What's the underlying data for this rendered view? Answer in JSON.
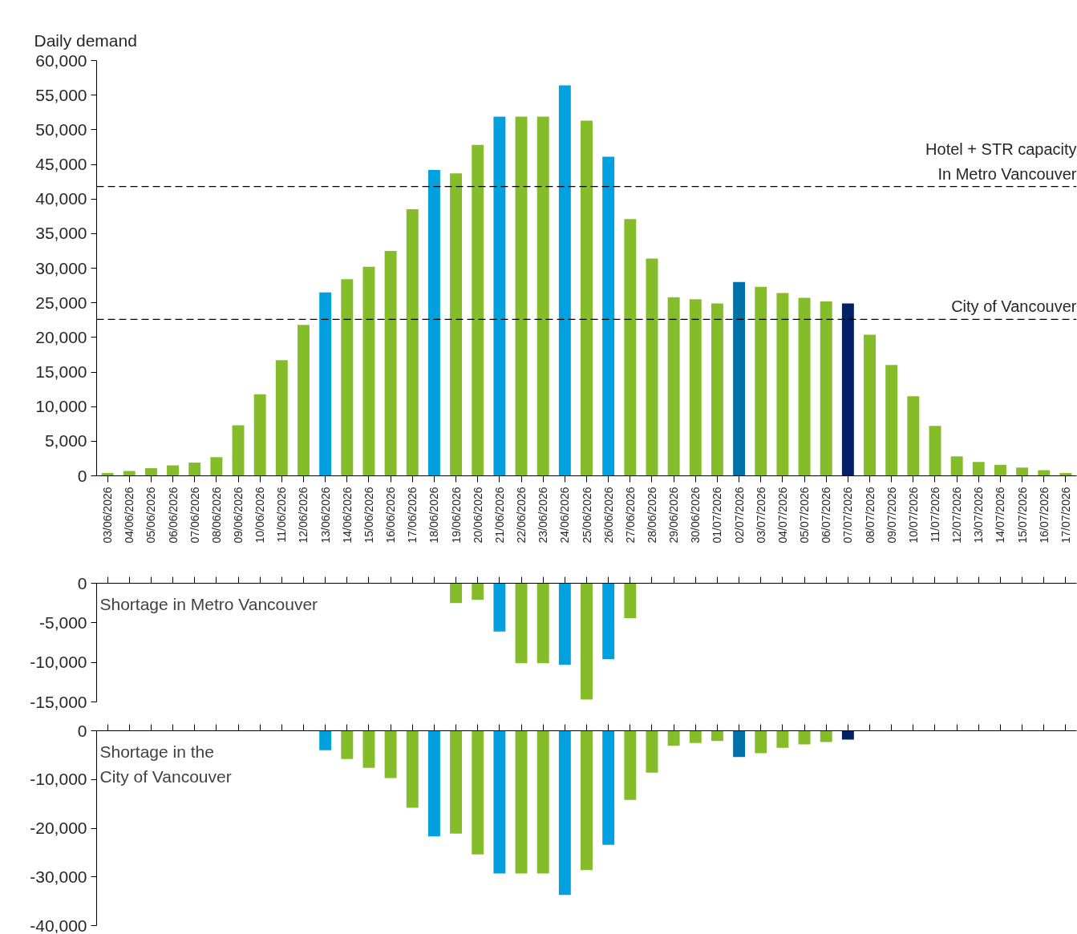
{
  "chart_data": [
    {
      "type": "bar",
      "ylabel": "Daily demand",
      "grid": false,
      "categories": [
        "03/06/2026",
        "04/06/2026",
        "05/06/2026",
        "06/06/2026",
        "07/06/2026",
        "08/06/2026",
        "09/06/2026",
        "10/06/2026",
        "11/06/2026",
        "12/06/2026",
        "13/06/2026",
        "14/06/2026",
        "15/06/2026",
        "16/06/2026",
        "17/06/2026",
        "18/06/2026",
        "19/06/2026",
        "20/06/2026",
        "21/06/2026",
        "22/06/2026",
        "23/06/2026",
        "24/06/2026",
        "25/06/2026",
        "26/06/2026",
        "27/06/2026",
        "28/06/2026",
        "29/06/2026",
        "30/06/2026",
        "01/07/2026",
        "02/07/2026",
        "03/07/2026",
        "04/07/2026",
        "05/07/2026",
        "06/07/2026",
        "07/07/2026",
        "08/07/2026",
        "09/07/2026",
        "10/07/2026",
        "11/07/2026",
        "12/07/2026",
        "13/07/2026",
        "14/07/2026",
        "15/07/2026",
        "16/07/2026",
        "17/07/2026"
      ],
      "values": [
        400,
        700,
        1100,
        1500,
        1900,
        2700,
        7300,
        11800,
        16700,
        21800,
        26500,
        28400,
        30200,
        32500,
        38500,
        44200,
        43700,
        47800,
        51900,
        51900,
        51900,
        56400,
        51300,
        46100,
        37100,
        31400,
        25800,
        25500,
        24900,
        28000,
        27300,
        26400,
        25700,
        25200,
        24900,
        20400,
        16000,
        11500,
        7200,
        2800,
        2000,
        1600,
        1200,
        800,
        400
      ],
      "colors": [
        "#84bc2a",
        "#84bc2a",
        "#84bc2a",
        "#84bc2a",
        "#84bc2a",
        "#84bc2a",
        "#84bc2a",
        "#84bc2a",
        "#84bc2a",
        "#84bc2a",
        "#02a0df",
        "#84bc2a",
        "#84bc2a",
        "#84bc2a",
        "#84bc2a",
        "#02a0df",
        "#84bc2a",
        "#84bc2a",
        "#02a0df",
        "#84bc2a",
        "#84bc2a",
        "#02a0df",
        "#84bc2a",
        "#02a0df",
        "#84bc2a",
        "#84bc2a",
        "#84bc2a",
        "#84bc2a",
        "#84bc2a",
        "#0072a8",
        "#84bc2a",
        "#84bc2a",
        "#84bc2a",
        "#84bc2a",
        "#002163",
        "#84bc2a",
        "#84bc2a",
        "#84bc2a",
        "#84bc2a",
        "#84bc2a",
        "#84bc2a",
        "#84bc2a",
        "#84bc2a",
        "#84bc2a",
        "#84bc2a"
      ],
      "ylim": [
        0,
        60000
      ],
      "yticks": [
        {
          "value": 0,
          "label": "0"
        },
        {
          "value": 5000,
          "label": "5,000"
        },
        {
          "value": 10000,
          "label": "10,000"
        },
        {
          "value": 15000,
          "label": "15,000"
        },
        {
          "value": 20000,
          "label": "20,000"
        },
        {
          "value": 25000,
          "label": "25,000"
        },
        {
          "value": 30000,
          "label": "30,000"
        },
        {
          "value": 35000,
          "label": "35,000"
        },
        {
          "value": 40000,
          "label": "40,000"
        },
        {
          "value": 45000,
          "label": "45,000"
        },
        {
          "value": 50000,
          "label": "50,000"
        },
        {
          "value": 55000,
          "label": "55,000"
        },
        {
          "value": 60000,
          "label": "60,000"
        }
      ],
      "ref_lines": [
        {
          "axis": "y",
          "value": 41800,
          "label": "Hotel + STR capacity\nIn Metro Vancouver",
          "color": "#000000",
          "line_style": "dashed"
        },
        {
          "axis": "y",
          "value": 22600,
          "label": "City of Vancouver",
          "color": "#000000",
          "line_style": "dashed"
        }
      ]
    },
    {
      "type": "bar",
      "title": "Shortage in Metro Vancouver",
      "grid": false,
      "tick_labels": "y",
      "categories": [
        null,
        null,
        null,
        null,
        null,
        null,
        null,
        null,
        null,
        null,
        null,
        null,
        null,
        null,
        null,
        null,
        null,
        null,
        null,
        null,
        null,
        null,
        null,
        null,
        null,
        null,
        null,
        null,
        null,
        null,
        null,
        null,
        null,
        null,
        null,
        null,
        null,
        null,
        null,
        null,
        null,
        null,
        null,
        null,
        null
      ],
      "values": [
        null,
        null,
        null,
        null,
        null,
        null,
        null,
        null,
        null,
        null,
        null,
        null,
        null,
        null,
        null,
        null,
        -2500,
        -2100,
        -6100,
        -10100,
        -10100,
        -10300,
        -14700,
        -9600,
        -4400,
        null,
        null,
        null,
        null,
        null,
        null,
        null,
        null,
        null,
        null,
        null,
        null,
        null,
        null,
        null,
        null,
        null,
        null,
        null,
        null
      ],
      "colors": [
        "#84bc2a",
        "#84bc2a",
        "#84bc2a",
        "#84bc2a",
        "#84bc2a",
        "#84bc2a",
        "#84bc2a",
        "#84bc2a",
        "#84bc2a",
        "#84bc2a",
        "#02a0df",
        "#84bc2a",
        "#84bc2a",
        "#84bc2a",
        "#84bc2a",
        "#02a0df",
        "#84bc2a",
        "#84bc2a",
        "#02a0df",
        "#84bc2a",
        "#84bc2a",
        "#02a0df",
        "#84bc2a",
        "#02a0df",
        "#84bc2a",
        "#84bc2a",
        "#84bc2a",
        "#84bc2a",
        "#84bc2a",
        "#0072a8",
        "#84bc2a",
        "#84bc2a",
        "#84bc2a",
        "#84bc2a",
        "#002163",
        "#84bc2a",
        "#84bc2a",
        "#84bc2a",
        "#84bc2a",
        "#84bc2a",
        "#84bc2a",
        "#84bc2a",
        "#84bc2a",
        "#84bc2a",
        "#84bc2a"
      ],
      "ylim": [
        -15000,
        0
      ],
      "yticks": [
        {
          "value": 0,
          "label": "0"
        },
        {
          "value": -5000,
          "label": "-5,000"
        },
        {
          "value": -10000,
          "label": "-10,000"
        },
        {
          "value": -15000,
          "label": "-15,000"
        }
      ]
    },
    {
      "type": "bar",
      "title": "Shortage in the\nCity of Vancouver",
      "grid": false,
      "tick_labels": "y",
      "categories": [
        null,
        null,
        null,
        null,
        null,
        null,
        null,
        null,
        null,
        null,
        null,
        null,
        null,
        null,
        null,
        null,
        null,
        null,
        null,
        null,
        null,
        null,
        null,
        null,
        null,
        null,
        null,
        null,
        null,
        null,
        null,
        null,
        null,
        null,
        null,
        null,
        null,
        null,
        null,
        null,
        null,
        null,
        null,
        null,
        null
      ],
      "values": [
        null,
        null,
        null,
        null,
        null,
        null,
        null,
        null,
        null,
        null,
        -4000,
        -5800,
        -7600,
        -9700,
        -15800,
        -21700,
        -21100,
        -25400,
        -29300,
        -29300,
        -29300,
        -33700,
        -28600,
        -23400,
        -14200,
        -8600,
        -3100,
        -2500,
        -2100,
        -5400,
        -4600,
        -3500,
        -2800,
        -2300,
        -1800,
        null,
        null,
        null,
        null,
        null,
        null,
        null,
        null,
        null,
        null
      ],
      "colors": [
        "#84bc2a",
        "#84bc2a",
        "#84bc2a",
        "#84bc2a",
        "#84bc2a",
        "#84bc2a",
        "#84bc2a",
        "#84bc2a",
        "#84bc2a",
        "#84bc2a",
        "#02a0df",
        "#84bc2a",
        "#84bc2a",
        "#84bc2a",
        "#84bc2a",
        "#02a0df",
        "#84bc2a",
        "#84bc2a",
        "#02a0df",
        "#84bc2a",
        "#84bc2a",
        "#02a0df",
        "#84bc2a",
        "#02a0df",
        "#84bc2a",
        "#84bc2a",
        "#84bc2a",
        "#84bc2a",
        "#84bc2a",
        "#0072a8",
        "#84bc2a",
        "#84bc2a",
        "#84bc2a",
        "#84bc2a",
        "#002163",
        "#84bc2a",
        "#84bc2a",
        "#84bc2a",
        "#84bc2a",
        "#84bc2a",
        "#84bc2a",
        "#84bc2a",
        "#84bc2a",
        "#84bc2a",
        "#84bc2a"
      ],
      "ylim": [
        -40000,
        0
      ],
      "yticks": [
        {
          "value": 0,
          "label": "0"
        },
        {
          "value": -10000,
          "label": "-10,000"
        },
        {
          "value": -20000,
          "label": "-20,000"
        },
        {
          "value": -30000,
          "label": "-30,000"
        },
        {
          "value": -40000,
          "label": "-40,000"
        }
      ]
    }
  ]
}
